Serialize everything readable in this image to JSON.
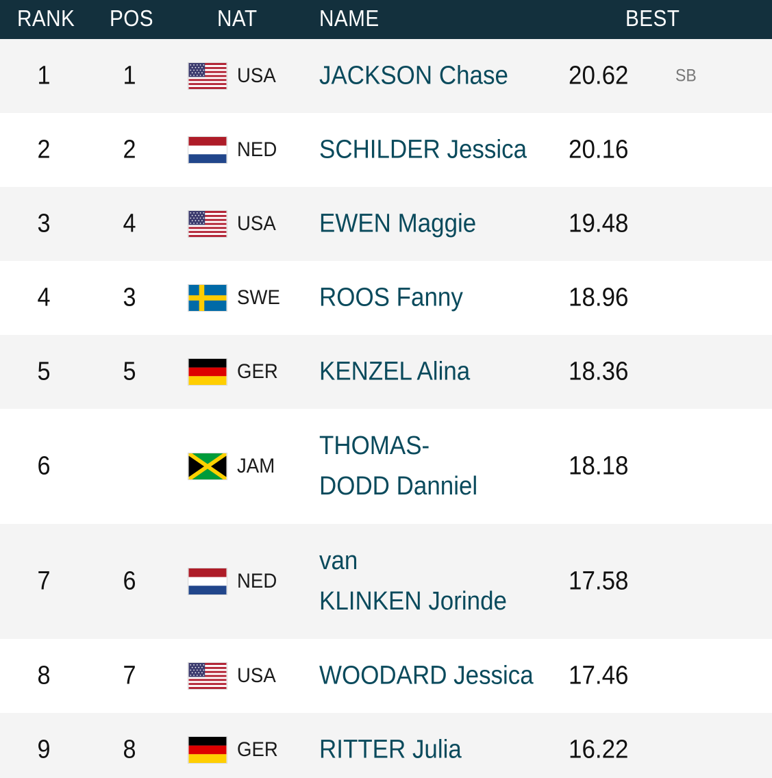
{
  "header": {
    "rank": "RANK",
    "pos": "POS",
    "nat": "NAT",
    "name": "NAME",
    "best": "BEST"
  },
  "rows": [
    {
      "rank": "1",
      "pos": "1",
      "flag": "usa-flag-icon",
      "nat": "USA",
      "name_first": "JACKSON Chase",
      "name_second": "",
      "best": "20.62",
      "note": "SB"
    },
    {
      "rank": "2",
      "pos": "2",
      "flag": "netherlands-flag-icon",
      "nat": "NED",
      "name_first": "SCHILDER Jessica",
      "name_second": "",
      "best": "20.16",
      "note": ""
    },
    {
      "rank": "3",
      "pos": "4",
      "flag": "usa-flag-icon",
      "nat": "USA",
      "name_first": "EWEN Maggie",
      "name_second": "",
      "best": "19.48",
      "note": ""
    },
    {
      "rank": "4",
      "pos": "3",
      "flag": "sweden-flag-icon",
      "nat": "SWE",
      "name_first": "ROOS Fanny",
      "name_second": "",
      "best": "18.96",
      "note": ""
    },
    {
      "rank": "5",
      "pos": "5",
      "flag": "germany-flag-icon",
      "nat": "GER",
      "name_first": "KENZEL Alina",
      "name_second": "",
      "best": "18.36",
      "note": ""
    },
    {
      "rank": "6",
      "pos": "",
      "flag": "jamaica-flag-icon",
      "nat": "JAM",
      "name_first": "THOMAS-",
      "name_second": "DODD Danniel",
      "best": "18.18",
      "note": ""
    },
    {
      "rank": "7",
      "pos": "6",
      "flag": "netherlands-flag-icon",
      "nat": "NED",
      "name_first": "van",
      "name_second": "KLINKEN Jorinde",
      "best": "17.58",
      "note": ""
    },
    {
      "rank": "8",
      "pos": "7",
      "flag": "usa-flag-icon",
      "nat": "USA",
      "name_first": "WOODARD Jessica",
      "name_second": "",
      "best": "17.46",
      "note": ""
    },
    {
      "rank": "9",
      "pos": "8",
      "flag": "germany-flag-icon",
      "nat": "GER",
      "name_first": "RITTER Julia",
      "name_second": "",
      "best": "16.22",
      "note": ""
    }
  ]
}
